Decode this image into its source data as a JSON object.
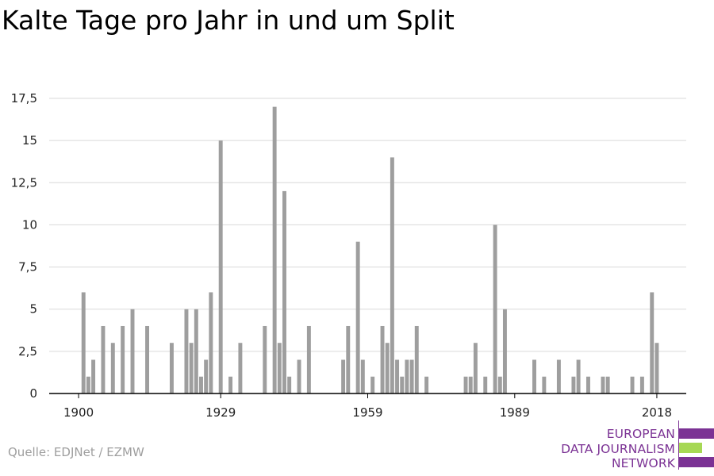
{
  "title": "Kalte Tage pro Jahr in und um Split",
  "source": "Quelle: EDJNet / EZMW",
  "logo": {
    "lines": [
      "EUROPEAN",
      "DATA JOURNALISM",
      "NETWORK"
    ],
    "text_color": "#7b3294",
    "bar_colors": [
      "#7b3294",
      "#a6d854",
      "#7b3294"
    ]
  },
  "colors": {
    "bar": "#9e9e9e",
    "grid": "#d9d9d9",
    "axis": "#000000"
  },
  "chart_data": {
    "type": "bar",
    "title": "Kalte Tage pro Jahr in und um Split",
    "xlabel": "",
    "ylabel": "",
    "x_ticks": [
      1900,
      1929,
      1959,
      1989,
      2018
    ],
    "x_tick_labels": [
      "1900",
      "1929",
      "1959",
      "1989",
      "2018"
    ],
    "xlim": [
      1894,
      2024
    ],
    "ylim": [
      0,
      17.5
    ],
    "y_ticks": [
      0,
      2.5,
      5,
      7.5,
      10,
      12.5,
      15,
      17.5
    ],
    "y_tick_labels": [
      "0",
      "2,5",
      "5",
      "7,5",
      "10",
      "12,5",
      "15",
      "17,5"
    ],
    "grid": true,
    "legend": "none",
    "x": [
      1901,
      1902,
      1903,
      1905,
      1907,
      1909,
      1911,
      1914,
      1919,
      1922,
      1923,
      1924,
      1925,
      1926,
      1927,
      1929,
      1931,
      1933,
      1938,
      1940,
      1941,
      1942,
      1943,
      1945,
      1947,
      1954,
      1955,
      1957,
      1958,
      1960,
      1962,
      1963,
      1964,
      1965,
      1966,
      1967,
      1968,
      1969,
      1971,
      1979,
      1980,
      1981,
      1983,
      1985,
      1986,
      1987,
      1993,
      1995,
      1998,
      2001,
      2002,
      2004,
      2007,
      2008,
      2013,
      2015,
      2017,
      2018
    ],
    "values": [
      6,
      1,
      2,
      4,
      3,
      4,
      5,
      4,
      3,
      5,
      3,
      5,
      1,
      2,
      6,
      15,
      1,
      3,
      4,
      17,
      3,
      12,
      1,
      2,
      4,
      2,
      4,
      9,
      2,
      1,
      4,
      3,
      14,
      2,
      1,
      2,
      2,
      4,
      1,
      1,
      1,
      3,
      1,
      10,
      1,
      5,
      2,
      1,
      2,
      1,
      2,
      1,
      1,
      1,
      1,
      1,
      6,
      3
    ]
  }
}
